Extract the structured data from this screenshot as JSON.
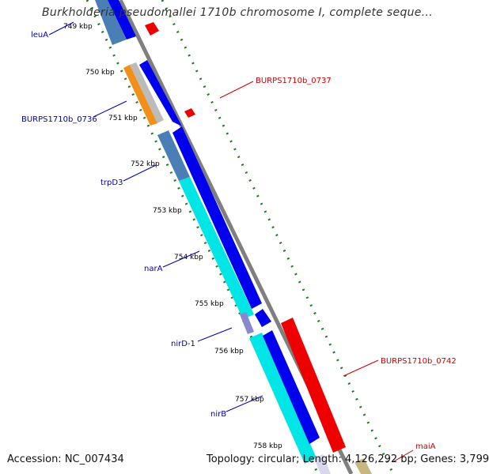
{
  "header": {
    "title": "Burkholderia pseudomallei 1710b chromosome I, complete seque..."
  },
  "footer": {
    "accession": "Accession: NC_007434",
    "topology": "Topology: circular",
    "length": "Length: 4,126,292 bp",
    "genes": "Genes: 3,799"
  },
  "colors": {
    "reverse_cds": "#0000ee",
    "forward_cds": "#ee0000",
    "backbone": "#7f7f7f",
    "tick_green": "#1e7a1e",
    "leuA": "#4a7fb5",
    "trpD3": "#4a7fb5",
    "narA": "#00e5e5",
    "nirB": "#00e5e5",
    "BURPS1710b_0736": "#f0901a",
    "reverse_label": "#0000aa",
    "forward_label": "#cc0000",
    "maiA": "#c8b880"
  },
  "ruler": {
    "ticks": [
      "749 kbp",
      "750 kbp",
      "751 kbp",
      "752 kbp",
      "753 kbp",
      "754 kbp",
      "755 kbp",
      "756 kbp",
      "757 kbp",
      "758 kbp"
    ]
  },
  "genes": {
    "reverse": [
      "leuA",
      "BURPS1710b_0736",
      "trpD3",
      "narA",
      "nirD-1",
      "nirB"
    ],
    "forward": [
      "BURPS1710b_0737",
      "BURPS1710b_0742",
      "maiA"
    ]
  }
}
